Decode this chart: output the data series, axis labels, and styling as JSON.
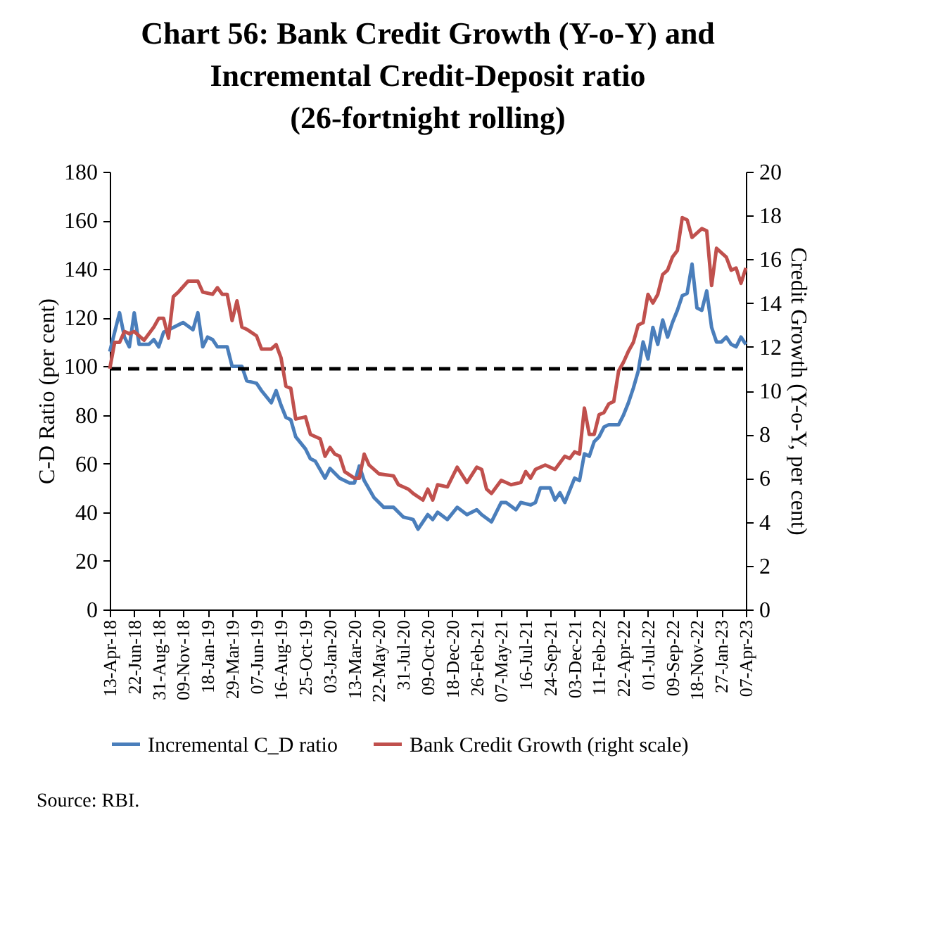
{
  "chart_data": {
    "type": "line",
    "title": "Chart 56: Bank Credit Growth (Y-o-Y) and Incremental Credit-Deposit ratio (26-fortnight rolling)",
    "ylabel": "C-D Ratio (per cent)",
    "y2label": "Credit Growth (Y-o-Y, per cent)",
    "annotations": [
      "Source: RBI."
    ],
    "xlim": [
      "2018-04-13",
      "2023-04-07"
    ],
    "xticks": [
      {
        "value": "2018-04-13",
        "label": "13-Apr-18"
      },
      {
        "value": "2018-06-22",
        "label": "22-Jun-18"
      },
      {
        "value": "2018-08-31",
        "label": "31-Aug-18"
      },
      {
        "value": "2018-11-09",
        "label": "09-Nov-18"
      },
      {
        "value": "2019-01-18",
        "label": "18-Jan-19"
      },
      {
        "value": "2019-03-29",
        "label": "29-Mar-19"
      },
      {
        "value": "2019-06-07",
        "label": "07-Jun-19"
      },
      {
        "value": "2019-08-16",
        "label": "16-Aug-19"
      },
      {
        "value": "2019-10-25",
        "label": "25-Oct-19"
      },
      {
        "value": "2020-01-03",
        "label": "03-Jan-20"
      },
      {
        "value": "2020-03-13",
        "label": "13-Mar-20"
      },
      {
        "value": "2020-05-22",
        "label": "22-May-20"
      },
      {
        "value": "2020-07-31",
        "label": "31-Jul-20"
      },
      {
        "value": "2020-10-09",
        "label": "09-Oct-20"
      },
      {
        "value": "2020-12-18",
        "label": "18-Dec-20"
      },
      {
        "value": "2021-02-26",
        "label": "26-Feb-21"
      },
      {
        "value": "2021-05-07",
        "label": "07-May-21"
      },
      {
        "value": "2021-07-16",
        "label": "16-Jul-21"
      },
      {
        "value": "2021-09-24",
        "label": "24-Sep-21"
      },
      {
        "value": "2021-12-03",
        "label": "03-Dec-21"
      },
      {
        "value": "2022-02-11",
        "label": "11-Feb-22"
      },
      {
        "value": "2022-04-22",
        "label": "22-Apr-22"
      },
      {
        "value": "2022-07-01",
        "label": "01-Jul-22"
      },
      {
        "value": "2022-09-09",
        "label": "09-Sep-22"
      },
      {
        "value": "2022-11-18",
        "label": "18-Nov-22"
      },
      {
        "value": "2023-01-27",
        "label": "27-Jan-23"
      },
      {
        "value": "2023-04-07",
        "label": "07-Apr-23"
      }
    ],
    "ylim": [
      0,
      180
    ],
    "yticks": [
      0,
      20,
      40,
      60,
      80,
      100,
      120,
      140,
      160,
      180
    ],
    "y2lim": [
      0,
      20
    ],
    "y2ticks": [
      0,
      2,
      4,
      6,
      8,
      10,
      12,
      14,
      16,
      18,
      20
    ],
    "legend": "bottom",
    "marker": "none",
    "line_style": "solid",
    "ref_lines": [
      {
        "axis": "y",
        "value": 99,
        "color": "#000000",
        "line_style": "dashed"
      }
    ],
    "series": [
      {
        "name": "Incremental C_D ratio",
        "color": "#4a7ebb",
        "x": [
          "2018-04-13",
          "2018-05-11",
          "2018-05-25",
          "2018-06-08",
          "2018-06-22",
          "2018-07-06",
          "2018-08-03",
          "2018-08-17",
          "2018-08-31",
          "2018-09-14",
          "2018-10-12",
          "2018-11-09",
          "2018-12-07",
          "2018-12-21",
          "2019-01-04",
          "2019-01-18",
          "2019-02-01",
          "2019-02-15",
          "2019-03-15",
          "2019-03-29",
          "2019-04-26",
          "2019-05-10",
          "2019-06-07",
          "2019-06-21",
          "2019-07-19",
          "2019-08-02",
          "2019-08-16",
          "2019-08-30",
          "2019-09-13",
          "2019-09-27",
          "2019-10-25",
          "2019-11-08",
          "2019-11-22",
          "2019-12-20",
          "2020-01-03",
          "2020-01-31",
          "2020-02-28",
          "2020-03-13",
          "2020-03-27",
          "2020-04-10",
          "2020-05-08",
          "2020-06-05",
          "2020-07-03",
          "2020-07-31",
          "2020-08-28",
          "2020-09-11",
          "2020-10-09",
          "2020-10-23",
          "2020-11-06",
          "2020-12-04",
          "2021-01-01",
          "2021-01-29",
          "2021-02-26",
          "2021-03-12",
          "2021-04-09",
          "2021-05-07",
          "2021-05-21",
          "2021-06-18",
          "2021-07-02",
          "2021-07-30",
          "2021-08-13",
          "2021-08-27",
          "2021-09-24",
          "2021-10-08",
          "2021-10-22",
          "2021-11-05",
          "2021-12-03",
          "2021-12-17",
          "2021-12-31",
          "2022-01-14",
          "2022-01-28",
          "2022-02-11",
          "2022-02-25",
          "2022-03-11",
          "2022-04-08",
          "2022-04-22",
          "2022-05-06",
          "2022-05-20",
          "2022-06-03",
          "2022-06-17",
          "2022-07-01",
          "2022-07-15",
          "2022-07-29",
          "2022-08-12",
          "2022-08-26",
          "2022-09-09",
          "2022-09-23",
          "2022-10-07",
          "2022-10-21",
          "2022-11-04",
          "2022-11-18",
          "2022-12-02",
          "2022-12-16",
          "2022-12-30",
          "2023-01-13",
          "2023-01-27",
          "2023-02-10",
          "2023-02-24",
          "2023-03-10",
          "2023-03-24",
          "2023-04-07"
        ],
        "values": [
          106,
          122,
          112,
          108,
          122,
          109,
          109,
          111,
          108,
          114,
          116,
          118,
          115,
          122,
          108,
          112,
          111,
          108,
          108,
          100,
          100,
          94,
          93,
          90,
          85,
          90,
          84,
          79,
          78,
          71,
          66,
          62,
          61,
          54,
          58,
          54,
          52,
          52,
          59,
          53,
          46,
          42,
          42,
          38,
          37,
          33,
          39,
          37,
          40,
          37,
          42,
          39,
          41,
          39,
          36,
          44,
          44,
          41,
          44,
          43,
          44,
          50,
          50,
          45,
          48,
          44,
          54,
          53,
          64,
          63,
          69,
          71,
          75,
          76,
          76,
          80,
          85,
          91,
          98,
          110,
          103,
          116,
          109,
          119,
          112,
          118,
          123,
          129,
          130,
          142,
          124,
          123,
          131,
          116,
          110,
          110,
          112,
          109,
          108,
          112,
          109
        ]
      },
      {
        "name": "Bank Credit Growth (right scale)",
        "color": "#c0504d",
        "axis": "y2",
        "x": [
          "2018-04-13",
          "2018-04-27",
          "2018-05-11",
          "2018-05-25",
          "2018-06-08",
          "2018-06-22",
          "2018-07-20",
          "2018-08-17",
          "2018-08-31",
          "2018-09-14",
          "2018-09-28",
          "2018-10-12",
          "2018-10-26",
          "2018-11-23",
          "2018-12-21",
          "2019-01-04",
          "2019-02-01",
          "2019-02-15",
          "2019-03-01",
          "2019-03-15",
          "2019-03-29",
          "2019-04-12",
          "2019-04-26",
          "2019-05-10",
          "2019-06-07",
          "2019-06-21",
          "2019-07-19",
          "2019-08-02",
          "2019-08-16",
          "2019-08-30",
          "2019-09-13",
          "2019-09-27",
          "2019-10-25",
          "2019-11-08",
          "2019-12-06",
          "2019-12-20",
          "2020-01-03",
          "2020-01-17",
          "2020-01-31",
          "2020-02-14",
          "2020-03-13",
          "2020-03-27",
          "2020-04-10",
          "2020-04-24",
          "2020-05-22",
          "2020-07-03",
          "2020-07-17",
          "2020-08-14",
          "2020-08-28",
          "2020-09-25",
          "2020-10-09",
          "2020-10-23",
          "2020-11-06",
          "2020-12-04",
          "2021-01-01",
          "2021-01-29",
          "2021-02-26",
          "2021-03-12",
          "2021-03-26",
          "2021-04-09",
          "2021-05-07",
          "2021-06-04",
          "2021-07-02",
          "2021-07-16",
          "2021-07-30",
          "2021-08-13",
          "2021-09-10",
          "2021-10-08",
          "2021-11-05",
          "2021-11-19",
          "2021-12-03",
          "2021-12-17",
          "2021-12-31",
          "2022-01-14",
          "2022-01-28",
          "2022-02-11",
          "2022-02-25",
          "2022-03-11",
          "2022-03-25",
          "2022-04-08",
          "2022-04-22",
          "2022-05-06",
          "2022-05-20",
          "2022-06-03",
          "2022-06-17",
          "2022-07-01",
          "2022-07-15",
          "2022-07-29",
          "2022-08-12",
          "2022-08-26",
          "2022-09-09",
          "2022-09-23",
          "2022-10-07",
          "2022-10-21",
          "2022-11-04",
          "2022-11-18",
          "2022-12-02",
          "2022-12-16",
          "2022-12-30",
          "2023-01-13",
          "2023-02-10",
          "2023-02-24",
          "2023-03-10",
          "2023-03-24",
          "2023-04-07"
        ],
        "values": [
          11.0,
          12.2,
          12.2,
          12.7,
          12.6,
          12.7,
          12.3,
          12.9,
          13.3,
          13.3,
          12.4,
          14.3,
          14.5,
          15.0,
          15.0,
          14.5,
          14.4,
          14.7,
          14.4,
          14.4,
          13.2,
          14.1,
          12.9,
          12.8,
          12.5,
          11.9,
          11.9,
          12.1,
          11.5,
          10.2,
          10.1,
          8.7,
          8.8,
          8.0,
          7.8,
          7.0,
          7.4,
          7.1,
          7.0,
          6.3,
          6.0,
          6.0,
          7.1,
          6.6,
          6.2,
          6.1,
          5.7,
          5.5,
          5.3,
          5.0,
          5.5,
          5.0,
          5.7,
          5.6,
          6.5,
          5.8,
          6.5,
          6.4,
          5.5,
          5.3,
          5.9,
          5.7,
          5.8,
          6.3,
          6.0,
          6.4,
          6.6,
          6.4,
          7.0,
          6.9,
          7.2,
          7.1,
          9.2,
          8.0,
          8.0,
          8.9,
          9.0,
          9.4,
          9.5,
          10.9,
          11.3,
          11.8,
          12.2,
          13.0,
          13.1,
          14.4,
          14.0,
          14.4,
          15.3,
          15.5,
          16.1,
          16.4,
          17.9,
          17.8,
          17.0,
          17.2,
          17.4,
          17.3,
          14.8,
          16.5,
          16.1,
          15.5,
          15.6,
          14.9,
          15.6
        ]
      }
    ]
  }
}
